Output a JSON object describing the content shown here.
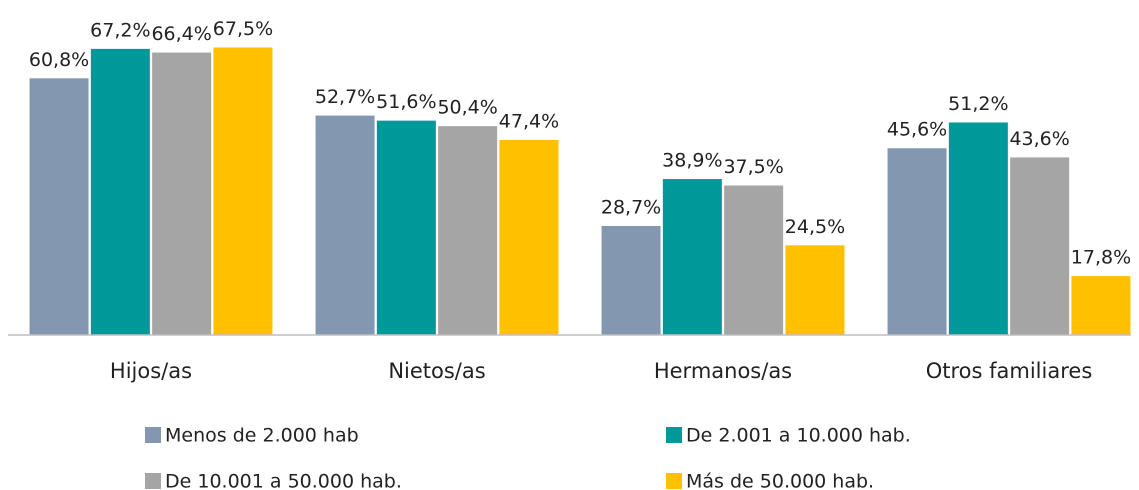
{
  "chart_data": {
    "type": "bar",
    "categories": [
      "Hijos/as",
      "Nietos/as",
      "Hermanos/as",
      "Otros familiares"
    ],
    "series": [
      {
        "name": "Menos de 2.000 hab",
        "color": "#8497b0",
        "values": [
          60.8,
          52.7,
          28.7,
          45.6
        ],
        "value_labels": [
          "60,8%",
          "52,7%",
          "28,7%",
          "45,6%"
        ]
      },
      {
        "name": "De 2.001 a 10.000 hab.",
        "color": "#009999",
        "values": [
          67.2,
          51.6,
          38.9,
          51.2
        ],
        "value_labels": [
          "67,2%",
          "51,6%",
          "38,9%",
          "51,2%"
        ]
      },
      {
        "name": "De 10.001 a 50.000 hab.",
        "color": "#a5a5a5",
        "values": [
          66.4,
          50.4,
          37.5,
          43.6
        ],
        "value_labels": [
          "66,4%",
          "50,4%",
          "37,5%",
          "43,6%"
        ]
      },
      {
        "name": "Más de 50.000 hab.",
        "color": "#ffc000",
        "values": [
          67.5,
          47.4,
          24.5,
          17.8
        ],
        "value_labels": [
          "67,5%",
          "47,4%",
          "24,5%",
          "17,8%"
        ]
      }
    ],
    "ylim": [
      5,
      70
    ]
  }
}
